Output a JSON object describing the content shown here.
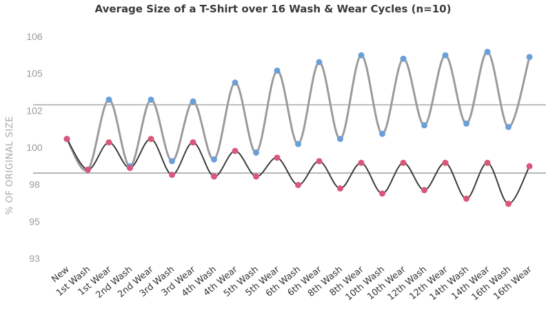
{
  "chart_data": {
    "type": "line",
    "title": "Average Size of a T-Shirt over 16 Wash & Wear Cycles (n=10)",
    "xlabel": "",
    "ylabel": "% OF ORIGINAL SIZE",
    "ylim": [
      93,
      106
    ],
    "y_ticks": [
      "106",
      "105",
      "102",
      "100",
      "98",
      "95",
      "93"
    ],
    "reference_lines": [
      102,
      98
    ],
    "legend": "none",
    "grid": false,
    "categories": [
      "New",
      "1st Wash",
      "1st Wear",
      "2nd Wash",
      "2nd Wear",
      "3rd Wash",
      "3rd Wear",
      "4th Wash",
      "4th Wear",
      "5th Wash",
      "5th Wear",
      "6th Wash",
      "6th Wear",
      "8th Wash",
      "8th Wear",
      "10th Wash",
      "10th Wear",
      "12th Wash",
      "12th Wear",
      "14th Wash",
      "14th Wear",
      "16th Wash",
      "16th Wear"
    ],
    "series": [
      {
        "color": "#6b9fd8",
        "values": [
          100.0,
          98.2,
          102.3,
          98.4,
          102.3,
          98.7,
          102.2,
          98.8,
          103.3,
          99.2,
          104.0,
          99.7,
          104.5,
          100.0,
          104.9,
          100.3,
          104.7,
          100.8,
          104.9,
          100.9,
          105.1,
          100.7,
          104.8
        ]
      },
      {
        "color": "#d9577a",
        "values": [
          100.0,
          98.2,
          99.8,
          98.3,
          100.0,
          97.9,
          99.8,
          97.8,
          99.3,
          97.8,
          98.9,
          97.3,
          98.7,
          97.1,
          98.6,
          96.8,
          98.6,
          97.0,
          98.6,
          96.5,
          98.6,
          96.2,
          98.4
        ]
      }
    ]
  },
  "colors": {
    "reference_line": "#8a8a8a",
    "curve_blue": "#9a9a9a",
    "curve_pink": "#3a3a3a"
  }
}
